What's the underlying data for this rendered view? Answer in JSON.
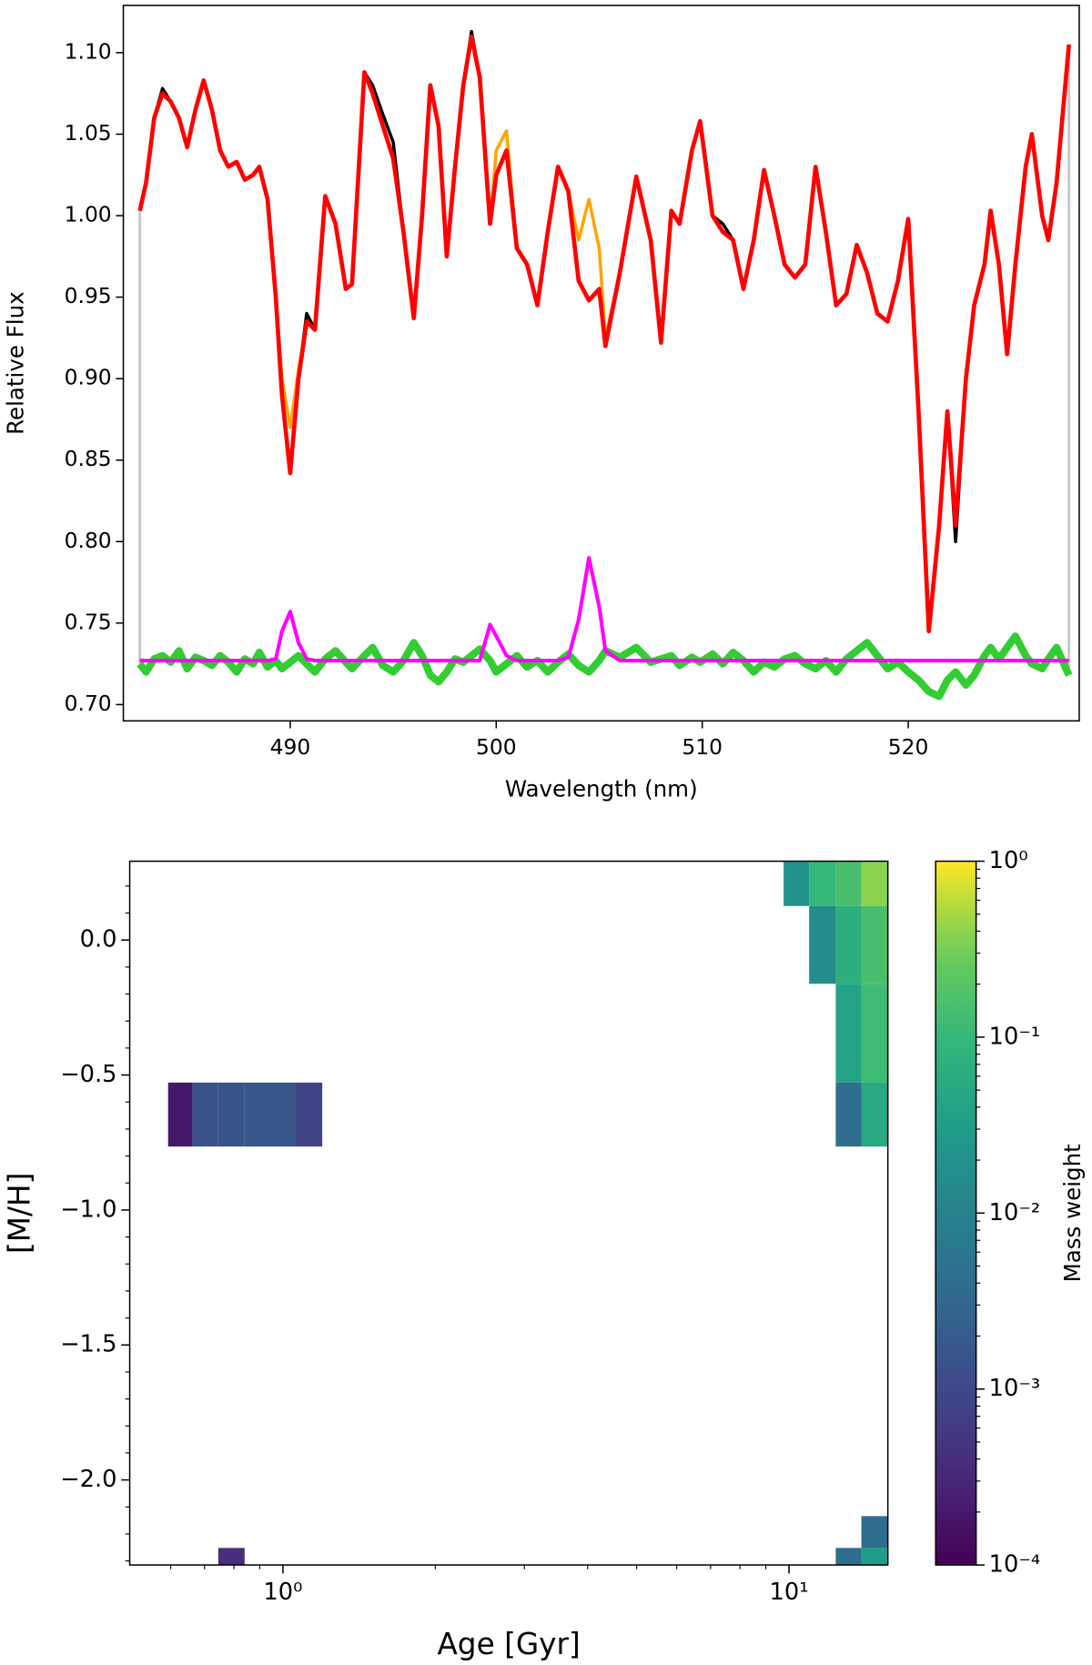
{
  "chart_data": [
    {
      "type": "line",
      "xlabel": "Wavelength (nm)",
      "ylabel": "Relative Flux",
      "xlim": [
        481.9,
        528.3
      ],
      "ylim": [
        0.69,
        1.129
      ],
      "xticks": [
        490,
        500,
        510,
        520
      ],
      "yticks": [
        {
          "value": 0.7,
          "label": "0.70"
        },
        {
          "value": 0.75,
          "label": "0.75"
        },
        {
          "value": 0.8,
          "label": "0.80"
        },
        {
          "value": 0.85,
          "label": "0.85"
        },
        {
          "value": 0.9,
          "label": "0.90"
        },
        {
          "value": 0.95,
          "label": "0.95"
        },
        {
          "value": 1.0,
          "label": "1.00"
        },
        {
          "value": 1.05,
          "label": "1.05"
        },
        {
          "value": 1.1,
          "label": "1.10"
        }
      ],
      "x": [
        482.7,
        483.0,
        483.4,
        483.8,
        484.2,
        484.6,
        485.0,
        485.4,
        485.8,
        486.2,
        486.6,
        487.0,
        487.4,
        487.8,
        488.2,
        488.5,
        488.9,
        489.3,
        489.6,
        490.0,
        490.4,
        490.8,
        491.2,
        491.7,
        492.2,
        492.7,
        493.0,
        493.6,
        494.0,
        494.5,
        495.0,
        495.5,
        496.0,
        496.4,
        496.8,
        497.2,
        497.6,
        498.0,
        498.4,
        498.8,
        499.2,
        499.7,
        500.0,
        500.5,
        501.0,
        501.5,
        502.0,
        502.5,
        503.0,
        503.5,
        504.0,
        504.5,
        505.0,
        505.3,
        506.0,
        506.8,
        507.5,
        508.0,
        508.5,
        508.9,
        509.5,
        509.9,
        510.5,
        511.0,
        511.5,
        512.0,
        512.5,
        513.0,
        513.5,
        514.0,
        514.5,
        515.0,
        515.5,
        516.0,
        516.5,
        517.0,
        517.5,
        518.0,
        518.5,
        519.0,
        519.5,
        520.0,
        520.5,
        521.0,
        521.5,
        521.9,
        522.3,
        522.8,
        523.2,
        523.7,
        524.0,
        524.4,
        524.8,
        525.2,
        525.7,
        526.0,
        526.5,
        526.8,
        527.2,
        527.8
      ],
      "series": [
        {
          "color": "#32cd32",
          "values": [
            0.725,
            0.72,
            0.728,
            0.73,
            0.726,
            0.733,
            0.722,
            0.729,
            0.727,
            0.724,
            0.73,
            0.726,
            0.72,
            0.728,
            0.725,
            0.732,
            0.723,
            0.727,
            0.722,
            0.726,
            0.73,
            0.725,
            0.72,
            0.728,
            0.733,
            0.726,
            0.722,
            0.73,
            0.735,
            0.724,
            0.72,
            0.727,
            0.738,
            0.73,
            0.718,
            0.714,
            0.72,
            0.728,
            0.726,
            0.73,
            0.734,
            0.727,
            0.72,
            0.725,
            0.73,
            0.723,
            0.727,
            0.72,
            0.726,
            0.731,
            0.724,
            0.72,
            0.727,
            0.733,
            0.729,
            0.735,
            0.726,
            0.728,
            0.73,
            0.724,
            0.729,
            0.726,
            0.731,
            0.725,
            0.732,
            0.727,
            0.72,
            0.726,
            0.723,
            0.728,
            0.73,
            0.725,
            0.722,
            0.727,
            0.72,
            0.728,
            0.733,
            0.738,
            0.73,
            0.722,
            0.726,
            0.72,
            0.715,
            0.708,
            0.705,
            0.715,
            0.72,
            0.712,
            0.718,
            0.73,
            0.735,
            0.728,
            0.735,
            0.742,
            0.73,
            0.725,
            0.722,
            0.728,
            0.735,
            0.718
          ]
        },
        {
          "color": "#ff00ff",
          "values": [
            0.727,
            0.727,
            0.727,
            0.727,
            0.727,
            0.727,
            0.727,
            0.727,
            0.727,
            0.727,
            0.727,
            0.727,
            0.727,
            0.727,
            0.727,
            0.727,
            0.727,
            0.728,
            0.745,
            0.757,
            0.738,
            0.728,
            0.727,
            0.727,
            0.727,
            0.727,
            0.727,
            0.727,
            0.727,
            0.727,
            0.727,
            0.727,
            0.727,
            0.727,
            0.727,
            0.727,
            0.727,
            0.727,
            0.727,
            0.727,
            0.727,
            0.749,
            0.742,
            0.73,
            0.727,
            0.727,
            0.727,
            0.727,
            0.727,
            0.729,
            0.752,
            0.79,
            0.76,
            0.733,
            0.727,
            0.727,
            0.727,
            0.727,
            0.727,
            0.727,
            0.727,
            0.727,
            0.727,
            0.727,
            0.727,
            0.727,
            0.727,
            0.727,
            0.727,
            0.727,
            0.727,
            0.727,
            0.727,
            0.727,
            0.727,
            0.727,
            0.727,
            0.727,
            0.727,
            0.727,
            0.727,
            0.727,
            0.727,
            0.727,
            0.727,
            0.727,
            0.727,
            0.727,
            0.727,
            0.727,
            0.727,
            0.727,
            0.727,
            0.727,
            0.727,
            0.727,
            0.727,
            0.727,
            0.727,
            0.727
          ]
        },
        {
          "color": "#000000",
          "values": [
            1.003,
            1.02,
            1.06,
            1.078,
            1.07,
            1.06,
            1.042,
            1.065,
            1.083,
            1.065,
            1.04,
            1.03,
            1.033,
            1.022,
            1.025,
            1.03,
            1.01,
            0.95,
            0.89,
            0.842,
            0.9,
            0.94,
            0.93,
            1.012,
            0.995,
            0.955,
            0.958,
            1.088,
            1.08,
            1.062,
            1.045,
            0.99,
            0.937,
            1.0,
            1.08,
            1.055,
            0.975,
            1.03,
            1.08,
            1.113,
            1.085,
            0.995,
            1.025,
            1.04,
            0.98,
            0.97,
            0.945,
            0.99,
            1.03,
            1.015,
            0.96,
            0.948,
            0.955,
            0.92,
            0.965,
            1.024,
            0.985,
            0.922,
            1.003,
            0.995,
            1.04,
            1.058,
            1.0,
            0.995,
            0.985,
            0.955,
            0.985,
            1.028,
            1.0,
            0.97,
            0.962,
            0.97,
            1.03,
            0.99,
            0.945,
            0.952,
            0.982,
            0.965,
            0.94,
            0.935,
            0.96,
            0.998,
            0.88,
            0.745,
            0.81,
            0.88,
            0.8,
            0.9,
            0.945,
            0.97,
            1.003,
            0.97,
            0.915,
            0.97,
            1.03,
            1.05,
            1.0,
            0.985,
            1.02,
            1.105
          ]
        },
        {
          "color": "#ffa500",
          "values": [
            1.003,
            1.02,
            1.06,
            1.075,
            1.07,
            1.06,
            1.042,
            1.065,
            1.083,
            1.065,
            1.04,
            1.03,
            1.033,
            1.022,
            1.025,
            1.03,
            1.01,
            0.95,
            0.9,
            0.87,
            0.905,
            0.935,
            0.93,
            1.012,
            0.995,
            0.955,
            0.958,
            1.088,
            1.075,
            1.055,
            1.035,
            0.99,
            0.937,
            1.0,
            1.08,
            1.055,
            0.975,
            1.03,
            1.08,
            1.11,
            1.085,
            0.995,
            1.04,
            1.052,
            0.98,
            0.97,
            0.945,
            0.99,
            1.03,
            1.015,
            0.985,
            1.01,
            0.98,
            0.925,
            0.965,
            1.024,
            0.985,
            0.922,
            1.003,
            0.995,
            1.04,
            1.058,
            1.0,
            0.99,
            0.985,
            0.955,
            0.985,
            1.028,
            1.0,
            0.97,
            0.962,
            0.97,
            1.03,
            0.99,
            0.945,
            0.952,
            0.982,
            0.965,
            0.94,
            0.935,
            0.96,
            0.998,
            0.88,
            0.745,
            0.81,
            0.88,
            0.81,
            0.9,
            0.945,
            0.97,
            1.003,
            0.97,
            0.915,
            0.97,
            1.03,
            1.05,
            1.0,
            0.985,
            1.02,
            1.105
          ]
        },
        {
          "color": "#ff0000",
          "values": [
            1.003,
            1.02,
            1.06,
            1.075,
            1.07,
            1.06,
            1.042,
            1.065,
            1.083,
            1.065,
            1.04,
            1.03,
            1.033,
            1.022,
            1.025,
            1.03,
            1.01,
            0.95,
            0.89,
            0.842,
            0.9,
            0.935,
            0.93,
            1.012,
            0.995,
            0.955,
            0.958,
            1.088,
            1.075,
            1.055,
            1.035,
            0.99,
            0.937,
            1.0,
            1.08,
            1.055,
            0.975,
            1.03,
            1.08,
            1.11,
            1.085,
            0.995,
            1.025,
            1.04,
            0.98,
            0.97,
            0.945,
            0.99,
            1.03,
            1.015,
            0.96,
            0.948,
            0.955,
            0.92,
            0.965,
            1.024,
            0.985,
            0.922,
            1.003,
            0.995,
            1.04,
            1.058,
            1.0,
            0.99,
            0.985,
            0.955,
            0.985,
            1.028,
            1.0,
            0.97,
            0.962,
            0.97,
            1.03,
            0.99,
            0.945,
            0.952,
            0.982,
            0.965,
            0.94,
            0.935,
            0.96,
            0.998,
            0.88,
            0.745,
            0.81,
            0.88,
            0.81,
            0.9,
            0.945,
            0.97,
            1.003,
            0.97,
            0.915,
            0.97,
            1.03,
            1.05,
            1.0,
            0.985,
            1.02,
            1.105
          ]
        }
      ]
    },
    {
      "type": "heatmap",
      "xlabel": "Age [Gyr]",
      "ylabel": "[M/H]",
      "colorbar_label": "Mass weight",
      "xscale": "log",
      "xlim": [
        0.498,
        15.68
      ],
      "ylim": [
        -2.315,
        0.292
      ],
      "xticks": [
        {
          "value": 1,
          "label": "10⁰"
        },
        {
          "value": 10,
          "label": "10¹"
        }
      ],
      "xminor": [
        0.6,
        0.7,
        0.8,
        0.9,
        2,
        3,
        4,
        5,
        6,
        7,
        8,
        9
      ],
      "yticks": [
        {
          "value": 0.0,
          "label": "0.0"
        },
        {
          "value": -0.5,
          "label": "−0.5"
        },
        {
          "value": -1.0,
          "label": "−1.0"
        },
        {
          "value": -1.5,
          "label": "−1.5"
        },
        {
          "value": -2.0,
          "label": "−2.0"
        }
      ],
      "yminor": [
        -2.3,
        -2.2,
        -2.1,
        -1.9,
        -1.8,
        -1.7,
        -1.6,
        -1.4,
        -1.3,
        -1.2,
        -1.1,
        -0.9,
        -0.8,
        -0.7,
        -0.6,
        -0.4,
        -0.3,
        -0.2,
        -0.1,
        0.1,
        0.2
      ],
      "colormap": "viridis",
      "cscale": "log",
      "clim": [
        0.0001,
        1
      ],
      "cticks": [
        {
          "value": 1,
          "label": "10⁰"
        },
        {
          "value": 0.1,
          "label": "10⁻¹"
        },
        {
          "value": 0.01,
          "label": "10⁻²"
        },
        {
          "value": 0.001,
          "label": "10⁻³"
        },
        {
          "value": 0.0001,
          "label": "10⁻⁴"
        }
      ],
      "cminor": [
        0.0002,
        0.0003,
        0.0004,
        0.0005,
        0.0006,
        0.0007,
        0.0008,
        0.0009,
        0.002,
        0.003,
        0.004,
        0.005,
        0.006,
        0.007,
        0.008,
        0.009,
        0.02,
        0.03,
        0.04,
        0.05,
        0.06,
        0.07,
        0.08,
        0.09,
        0.2,
        0.3,
        0.4,
        0.5,
        0.6,
        0.7,
        0.8,
        0.9
      ],
      "cells": [
        {
          "x": [
            0.593,
            0.663
          ],
          "y": [
            -0.765,
            -0.528
          ],
          "value": 0.0002
        },
        {
          "x": [
            0.663,
            0.745
          ],
          "y": [
            -0.765,
            -0.528
          ],
          "value": 0.0015
        },
        {
          "x": [
            0.745,
            0.84
          ],
          "y": [
            -0.765,
            -0.528
          ],
          "value": 0.0015
        },
        {
          "x": [
            0.84,
            1.06
          ],
          "y": [
            -0.765,
            -0.528
          ],
          "value": 0.0017
        },
        {
          "x": [
            1.06,
            1.196
          ],
          "y": [
            -0.765,
            -0.528
          ],
          "value": 0.0008
        },
        {
          "x": [
            0.745,
            0.84
          ],
          "y": [
            -2.315,
            -2.252
          ],
          "value": 0.0004
        },
        {
          "x": [
            9.76,
            10.96
          ],
          "y": [
            0.126,
            0.292
          ],
          "value": 0.02
        },
        {
          "x": [
            10.96,
            12.37
          ],
          "y": [
            0.126,
            0.292
          ],
          "value": 0.1
        },
        {
          "x": [
            12.37,
            13.9
          ],
          "y": [
            0.126,
            0.292
          ],
          "value": 0.15
        },
        {
          "x": [
            13.9,
            15.68
          ],
          "y": [
            0.126,
            0.292
          ],
          "value": 0.4
        },
        {
          "x": [
            10.96,
            12.37
          ],
          "y": [
            -0.162,
            0.126
          ],
          "value": 0.015
        },
        {
          "x": [
            12.37,
            13.9
          ],
          "y": [
            -0.162,
            0.126
          ],
          "value": 0.07
        },
        {
          "x": [
            13.9,
            15.68
          ],
          "y": [
            -0.162,
            0.126
          ],
          "value": 0.15
        },
        {
          "x": [
            12.37,
            13.9
          ],
          "y": [
            -0.528,
            -0.162
          ],
          "value": 0.04
        },
        {
          "x": [
            13.9,
            15.68
          ],
          "y": [
            -0.528,
            -0.162
          ],
          "value": 0.12
        },
        {
          "x": [
            12.37,
            13.9
          ],
          "y": [
            -0.765,
            -0.528
          ],
          "value": 0.004
        },
        {
          "x": [
            13.9,
            15.68
          ],
          "y": [
            -0.765,
            -0.528
          ],
          "value": 0.05
        },
        {
          "x": [
            13.9,
            15.68
          ],
          "y": [
            -2.252,
            -2.134
          ],
          "value": 0.004
        },
        {
          "x": [
            12.37,
            13.9
          ],
          "y": [
            -2.315,
            -2.252
          ],
          "value": 0.004
        },
        {
          "x": [
            13.9,
            15.68
          ],
          "y": [
            -2.315,
            -2.252
          ],
          "value": 0.03
        }
      ]
    }
  ]
}
